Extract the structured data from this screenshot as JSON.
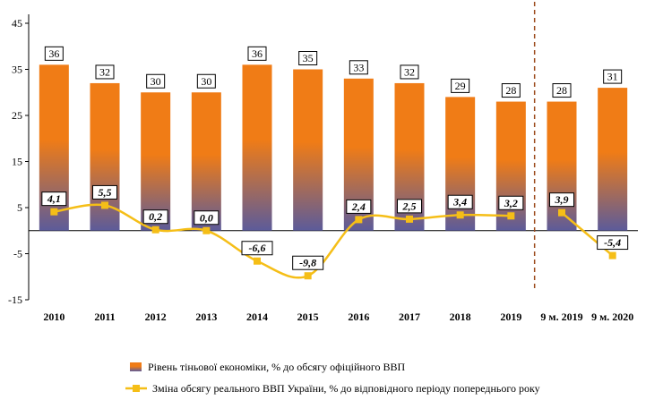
{
  "chart_data": {
    "type": "bar+line",
    "title": "",
    "xlabel": "",
    "ylabel": "",
    "ylim": [
      -15,
      45
    ],
    "yticks": [
      45,
      35,
      25,
      15,
      5,
      -5,
      -15
    ],
    "categories": [
      "2010",
      "2011",
      "2012",
      "2013",
      "2014",
      "2015",
      "2016",
      "2017",
      "2018",
      "2019",
      "9 м. 2019",
      "9 м. 2020"
    ],
    "series": [
      {
        "name": "Рівень тіньової економіки, % до обсягу офіційного ВВП",
        "type": "bar",
        "values": [
          36,
          32,
          30,
          30,
          36,
          35,
          33,
          32,
          29,
          28,
          28,
          31
        ],
        "labels": [
          "36",
          "32",
          "30",
          "30",
          "36",
          "35",
          "33",
          "32",
          "29",
          "28",
          "28",
          "31"
        ],
        "color_top": "#f07c16",
        "color_bottom": "#5c5b9a"
      },
      {
        "name": "Зміна обсягу реального ВВП України, % до відповідного періоду попереднього року",
        "type": "line",
        "segments": [
          [
            0,
            9
          ],
          [
            10,
            11
          ]
        ],
        "values": [
          4.1,
          5.5,
          0.2,
          0.0,
          -6.6,
          -9.8,
          2.4,
          2.5,
          3.4,
          3.2,
          3.9,
          -5.4
        ],
        "labels": [
          "4,1",
          "5,5",
          "0,2",
          "0,0",
          "-6,6",
          "-9,8",
          "2,4",
          "2,5",
          "3,4",
          "3,2",
          "3,9",
          "-5,4"
        ],
        "color": "#f5be17"
      }
    ],
    "separator_after_index": 9,
    "separator_color": "#9c4a1c",
    "legend_position": "bottom"
  }
}
